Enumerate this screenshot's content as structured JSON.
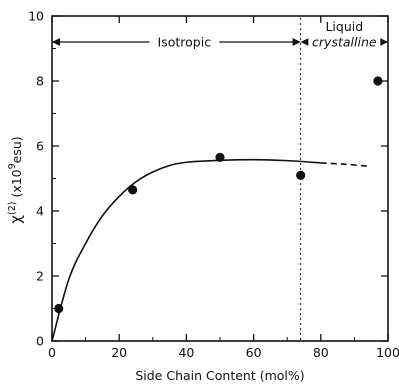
{
  "chart_data": {
    "type": "scatter",
    "title": "",
    "xlabel": "Side Chain Content (mol%)",
    "ylabel": {
      "symbol": "χ",
      "superscript": "(2)",
      "unit_open": "(x10",
      "unit_exp": "9",
      "unit_close": "esu)"
    },
    "xlim": [
      0,
      100
    ],
    "ylim": [
      0,
      10
    ],
    "x_ticks": [
      0,
      20,
      40,
      60,
      80,
      100
    ],
    "y_ticks": [
      0,
      2,
      4,
      6,
      8,
      10
    ],
    "x_tick_labels": [
      "0",
      "20",
      "40",
      "60",
      "80",
      "100"
    ],
    "y_tick_labels": [
      "0",
      "2",
      "4",
      "6",
      "8",
      "10"
    ],
    "points": [
      {
        "x": 2,
        "y": 1.0
      },
      {
        "x": 24,
        "y": 4.65
      },
      {
        "x": 50,
        "y": 5.65
      },
      {
        "x": 74,
        "y": 5.1
      },
      {
        "x": 97,
        "y": 8.0
      }
    ],
    "fit_curve": {
      "solid": [
        {
          "x": 0,
          "y": 0
        },
        {
          "x": 5,
          "y": 1.9
        },
        {
          "x": 10,
          "y": 3.0
        },
        {
          "x": 15,
          "y": 3.85
        },
        {
          "x": 20,
          "y": 4.45
        },
        {
          "x": 25,
          "y": 4.9
        },
        {
          "x": 30,
          "y": 5.2
        },
        {
          "x": 35,
          "y": 5.4
        },
        {
          "x": 40,
          "y": 5.5
        },
        {
          "x": 50,
          "y": 5.56
        },
        {
          "x": 60,
          "y": 5.58
        },
        {
          "x": 70,
          "y": 5.55
        },
        {
          "x": 80,
          "y": 5.48
        }
      ],
      "dashed": [
        {
          "x": 80,
          "y": 5.48
        },
        {
          "x": 87,
          "y": 5.44
        },
        {
          "x": 94,
          "y": 5.38
        }
      ]
    },
    "phase_boundary_x": 74,
    "regions": [
      {
        "label": "Isotropic",
        "x_from": 0,
        "x_to": 74,
        "y": 9.2
      },
      {
        "label_line1": "Liquid",
        "label_line2": "crystalline",
        "x_from": 74,
        "x_to": 100,
        "y": 9.2
      }
    ],
    "grid": false,
    "legend": "none"
  }
}
